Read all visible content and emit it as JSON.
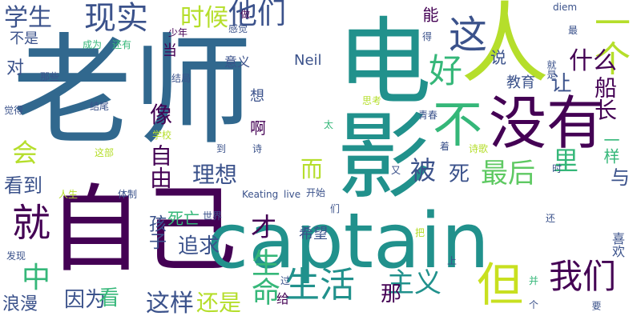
{
  "palette": {
    "dark_purple": "#440154",
    "indigo": "#3b528b",
    "blue": "#31688e",
    "teal": "#21918c",
    "sea_green": "#35b779",
    "green": "#5ec962",
    "lime": "#b5de2b",
    "yellow_green": "#c8e020"
  },
  "words": [
    {
      "text": "老师"
    },
    {
      "text": "自己"
    },
    {
      "text": "captain"
    },
    {
      "text": "电影"
    },
    {
      "text": "人"
    },
    {
      "text": "没有"
    },
    {
      "text": "一个"
    },
    {
      "text": "不"
    },
    {
      "text": "这"
    },
    {
      "text": "就"
    },
    {
      "text": "现实"
    },
    {
      "text": "他们"
    },
    {
      "text": "好"
    },
    {
      "text": "生活"
    },
    {
      "text": "我们"
    },
    {
      "text": "但"
    },
    {
      "text": "最后"
    },
    {
      "text": "主义"
    },
    {
      "text": "学生"
    },
    {
      "text": "时候"
    },
    {
      "text": "什么"
    },
    {
      "text": "船长"
    },
    {
      "text": "里"
    },
    {
      "text": "与"
    },
    {
      "text": "像"
    },
    {
      "text": "会"
    },
    {
      "text": "中"
    },
    {
      "text": "生命"
    },
    {
      "text": "自由"
    },
    {
      "text": "这样"
    },
    {
      "text": "还是"
    },
    {
      "text": "因为"
    },
    {
      "text": "理想"
    },
    {
      "text": "追求"
    },
    {
      "text": "看到"
    },
    {
      "text": "被"
    },
    {
      "text": "死"
    },
    {
      "text": "才"
    },
    {
      "text": "让"
    },
    {
      "text": "说"
    },
    {
      "text": "能"
    },
    {
      "text": "那"
    },
    {
      "text": "看"
    },
    {
      "text": "对"
    },
    {
      "text": "而"
    },
    {
      "text": "孩子"
    },
    {
      "text": "浪漫"
    },
    {
      "text": "死亡"
    },
    {
      "text": "教育"
    },
    {
      "text": "Neil"
    },
    {
      "text": "希望"
    },
    {
      "text": "啊"
    },
    {
      "text": "想"
    },
    {
      "text": "一样"
    },
    {
      "text": "不是"
    },
    {
      "text": "当"
    },
    {
      "text": "意义"
    },
    {
      "text": "喜欢"
    },
    {
      "text": "那些"
    },
    {
      "text": "给"
    },
    {
      "text": "成为"
    },
    {
      "text": "还有"
    },
    {
      "text": "少年"
    },
    {
      "text": "感觉"
    },
    {
      "text": "做"
    },
    {
      "text": "diem"
    },
    {
      "text": "最"
    },
    {
      "text": "得"
    },
    {
      "text": "就是"
    },
    {
      "text": "结局"
    },
    {
      "text": "觉得"
    },
    {
      "text": "结尾"
    },
    {
      "text": "思考"
    },
    {
      "text": "青春"
    },
    {
      "text": "太"
    },
    {
      "text": "学校"
    },
    {
      "text": "这部"
    },
    {
      "text": "到"
    },
    {
      "text": "诗"
    },
    {
      "text": "着"
    },
    {
      "text": "诗歌"
    },
    {
      "text": "体制"
    },
    {
      "text": "人生"
    },
    {
      "text": "又"
    },
    {
      "text": "Keating"
    },
    {
      "text": "live"
    },
    {
      "text": "开始"
    },
    {
      "text": "时"
    },
    {
      "text": "世界"
    },
    {
      "text": "们"
    },
    {
      "text": "把"
    },
    {
      "text": "还"
    },
    {
      "text": "发现"
    },
    {
      "text": "上"
    },
    {
      "text": "过"
    },
    {
      "text": "并"
    },
    {
      "text": "个"
    },
    {
      "text": "要"
    }
  ]
}
